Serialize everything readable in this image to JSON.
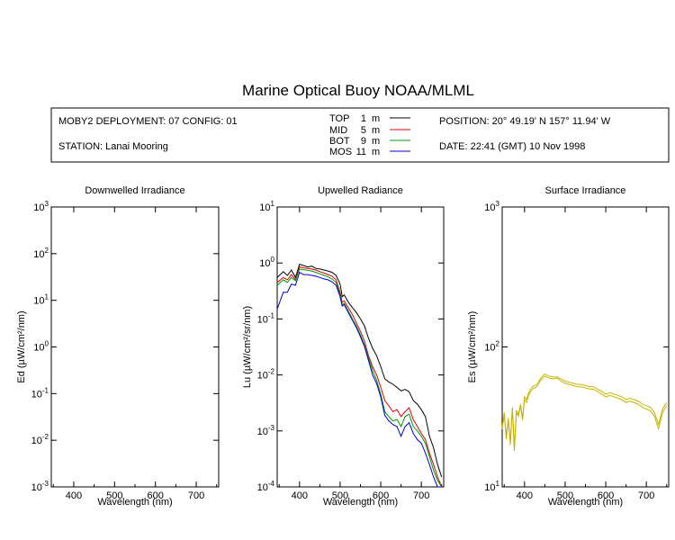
{
  "title": "Marine Optical Buoy NOAA/MLML",
  "info": {
    "deployment": "MOBY2 DEPLOYMENT: 07 CONFIG: 01",
    "station": "STATION: Lanai Mooring",
    "position": "POSITION: 20° 49.19' N   157° 11.94' W",
    "date": "DATE: 22:41 (GMT) 10 Nov 1998"
  },
  "legend": [
    {
      "label": "TOP",
      "depth": "1",
      "unit": "m",
      "color": "#000000"
    },
    {
      "label": "MID",
      "depth": "5",
      "unit": "m",
      "color": "#dd0000"
    },
    {
      "label": "BOT",
      "depth": "9",
      "unit": "m",
      "color": "#009900"
    },
    {
      "label": "MOS",
      "depth": "11",
      "unit": "m",
      "color": "#0000cc"
    }
  ],
  "chart_data": [
    {
      "type": "line",
      "title": "Downwelled Irradiance",
      "xlabel": "Wavelength (nm)",
      "ylabel": "Ed  (µW/cm²/nm)",
      "xlim": [
        345,
        755
      ],
      "ylim": [
        0.001,
        1000
      ],
      "yscale": "log",
      "xticks": [
        "400",
        "500",
        "600",
        "700"
      ],
      "yticks": [
        "10-3",
        "10-2",
        "10-1",
        "100",
        "101",
        "102",
        "103"
      ],
      "series": []
    },
    {
      "type": "line",
      "title": "Upwelled Radiance",
      "xlabel": "Wavelength (nm)",
      "ylabel": "Lu  (µW/cm²/sr/nm)",
      "xlim": [
        345,
        755
      ],
      "ylim": [
        0.0001,
        10
      ],
      "yscale": "log",
      "xticks": [
        "400",
        "500",
        "600",
        "700"
      ],
      "yticks": [
        "10-4",
        "10-3",
        "10-2",
        "10-1",
        "100",
        "101"
      ],
      "series": [
        {
          "color": "#000000",
          "x": [
            345,
            360,
            370,
            380,
            390,
            400,
            410,
            420,
            430,
            440,
            450,
            460,
            470,
            480,
            490,
            500,
            505,
            510,
            520,
            530,
            540,
            550,
            560,
            570,
            580,
            590,
            600,
            610,
            620,
            630,
            640,
            650,
            660,
            670,
            680,
            690,
            700,
            710,
            720,
            730,
            740,
            750
          ],
          "y": [
            0.55,
            0.7,
            0.6,
            0.75,
            0.55,
            0.95,
            0.9,
            0.85,
            0.88,
            0.8,
            0.78,
            0.75,
            0.72,
            0.68,
            0.6,
            0.42,
            0.25,
            0.27,
            0.2,
            0.16,
            0.13,
            0.1,
            0.075,
            0.045,
            0.03,
            0.022,
            0.014,
            0.0085,
            0.0075,
            0.0068,
            0.006,
            0.0052,
            0.0055,
            0.005,
            0.0035,
            0.003,
            0.0024,
            0.0018,
            0.0008,
            0.0005,
            0.00025,
            0.00015
          ]
        },
        {
          "color": "#dd0000",
          "x": [
            345,
            360,
            370,
            380,
            390,
            400,
            410,
            420,
            430,
            440,
            450,
            460,
            470,
            480,
            490,
            500,
            505,
            510,
            520,
            530,
            540,
            550,
            560,
            570,
            580,
            590,
            600,
            610,
            620,
            630,
            640,
            650,
            660,
            670,
            680,
            690,
            700,
            710,
            720,
            730,
            740,
            750
          ],
          "y": [
            0.45,
            0.55,
            0.5,
            0.62,
            0.5,
            0.85,
            0.82,
            0.8,
            0.78,
            0.75,
            0.7,
            0.66,
            0.62,
            0.58,
            0.5,
            0.3,
            0.2,
            0.21,
            0.16,
            0.12,
            0.085,
            0.06,
            0.04,
            0.022,
            0.014,
            0.01,
            0.006,
            0.0035,
            0.0028,
            0.0022,
            0.0024,
            0.0018,
            0.0022,
            0.0026,
            0.0016,
            0.0012,
            0.0009,
            0.0007,
            0.0004,
            0.00025,
            0.00015,
            0.0001
          ]
        },
        {
          "color": "#009900",
          "x": [
            345,
            360,
            370,
            380,
            390,
            400,
            410,
            420,
            430,
            440,
            450,
            460,
            470,
            480,
            490,
            500,
            505,
            510,
            520,
            530,
            540,
            550,
            560,
            570,
            580,
            590,
            600,
            610,
            620,
            630,
            640,
            650,
            660,
            670,
            680,
            690,
            700,
            710,
            720,
            730,
            740,
            750
          ],
          "y": [
            0.4,
            0.5,
            0.45,
            0.55,
            0.48,
            0.78,
            0.76,
            0.74,
            0.72,
            0.68,
            0.64,
            0.6,
            0.57,
            0.52,
            0.45,
            0.27,
            0.18,
            0.19,
            0.14,
            0.1,
            0.075,
            0.052,
            0.034,
            0.02,
            0.012,
            0.008,
            0.0045,
            0.0022,
            0.0018,
            0.0015,
            0.0016,
            0.0012,
            0.0018,
            0.002,
            0.0012,
            0.001,
            0.0008,
            0.0006,
            0.00035,
            0.0002,
            0.00013,
            0.0001
          ]
        },
        {
          "color": "#0000cc",
          "x": [
            345,
            360,
            370,
            380,
            390,
            400,
            410,
            420,
            430,
            440,
            450,
            460,
            470,
            480,
            490,
            500,
            505,
            510,
            520,
            530,
            540,
            550,
            560,
            570,
            580,
            590,
            600,
            610,
            620,
            630,
            640,
            650,
            660,
            670,
            680,
            690,
            700,
            710,
            720,
            730,
            740,
            750
          ],
          "y": [
            0.15,
            0.3,
            0.3,
            0.42,
            0.4,
            0.68,
            0.62,
            0.62,
            0.6,
            0.58,
            0.55,
            0.52,
            0.5,
            0.46,
            0.4,
            0.25,
            0.17,
            0.18,
            0.13,
            0.095,
            0.07,
            0.048,
            0.032,
            0.018,
            0.01,
            0.007,
            0.004,
            0.0019,
            0.0015,
            0.0013,
            0.0012,
            0.0008,
            0.0012,
            0.0014,
            0.0009,
            0.0007,
            0.0006,
            0.0004,
            0.00025,
            0.00015,
            0.0001,
            0.0001
          ]
        }
      ]
    },
    {
      "type": "line",
      "title": "Surface Irradiance",
      "xlabel": "Wavelength (nm)",
      "ylabel": "Es  (µW/cm²/nm)",
      "xlim": [
        345,
        755
      ],
      "ylim": [
        10,
        1000
      ],
      "yscale": "log",
      "xticks": [
        "400",
        "500",
        "600",
        "700"
      ],
      "yticks": [
        "101",
        "102",
        "103"
      ],
      "series": [
        {
          "color": "#c8b400",
          "x": [
            345,
            350,
            355,
            360,
            365,
            370,
            375,
            380,
            385,
            390,
            395,
            400,
            405,
            410,
            415,
            420,
            430,
            440,
            450,
            460,
            470,
            480,
            490,
            500,
            510,
            520,
            530,
            540,
            550,
            560,
            570,
            580,
            590,
            600,
            610,
            620,
            630,
            640,
            650,
            660,
            670,
            680,
            690,
            700,
            710,
            720,
            730,
            740,
            750
          ],
          "y": [
            26,
            33,
            22,
            30,
            20,
            36,
            18,
            34,
            32,
            38,
            30,
            42,
            40,
            45,
            48,
            50,
            52,
            58,
            62,
            60,
            59,
            60,
            57,
            55,
            54,
            53,
            52,
            52,
            51,
            50,
            50,
            48,
            46,
            44,
            45,
            44,
            43,
            42,
            40,
            41,
            40,
            39,
            37,
            36,
            35,
            32,
            26,
            34,
            38
          ]
        },
        {
          "color": "#c8b400",
          "x": [
            345,
            350,
            355,
            360,
            365,
            370,
            375,
            380,
            385,
            390,
            395,
            400,
            405,
            410,
            415,
            420,
            430,
            440,
            450,
            460,
            470,
            480,
            490,
            500,
            510,
            520,
            530,
            540,
            550,
            560,
            570,
            580,
            590,
            600,
            610,
            620,
            630,
            640,
            650,
            660,
            670,
            680,
            690,
            700,
            710,
            720,
            730,
            740,
            750
          ],
          "y": [
            27,
            34,
            23,
            31,
            21,
            37,
            19,
            35,
            33,
            39,
            31,
            44,
            42,
            47,
            50,
            52,
            54,
            60,
            64,
            62,
            61,
            61,
            59,
            57,
            56,
            55,
            54,
            54,
            53,
            52,
            52,
            50,
            48,
            46,
            47,
            46,
            45,
            44,
            42,
            43,
            42,
            41,
            39,
            38,
            37,
            34,
            28,
            36,
            40
          ]
        }
      ]
    }
  ]
}
